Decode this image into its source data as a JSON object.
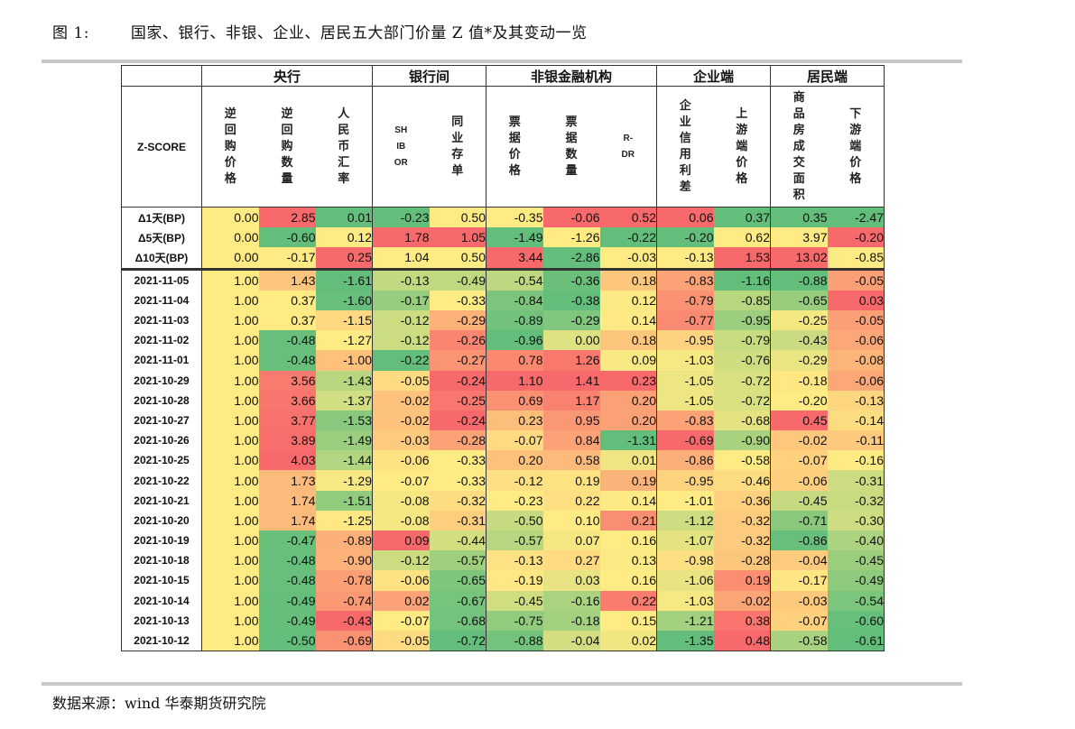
{
  "figure": {
    "label": "图 1:",
    "title": "国家、银行、非银、企业、居民五大部门价量 Z 值*及其变动一览",
    "source": "数据来源：wind 华泰期货研究院"
  },
  "table": {
    "corner_label": "Z-SCORE",
    "groups": [
      {
        "label": "央行",
        "span": 3
      },
      {
        "label": "银行间",
        "span": 2
      },
      {
        "label": "非银金融机构",
        "span": 3
      },
      {
        "label": "企业端",
        "span": 2
      },
      {
        "label": "居民端",
        "span": 2
      }
    ],
    "columns": [
      "逆回购价格",
      "逆回购数量",
      "人民币汇率",
      "SHIBOR",
      "同业存单",
      "票据价格",
      "票据数量",
      "R-DR",
      "企业信用利差",
      "上游端价格",
      "商品房成交面积",
      "下游端价格"
    ],
    "delta_rows": [
      {
        "label": "Δ1天(BP)",
        "values": [
          "0.00",
          "2.85",
          "0.01",
          "-0.23",
          "0.50",
          "-0.35",
          "-0.06",
          "0.52",
          "0.06",
          "0.37",
          "0.35",
          "-2.47"
        ]
      },
      {
        "label": "Δ5天(BP)",
        "values": [
          "0.00",
          "-0.60",
          "0.12",
          "1.78",
          "1.05",
          "-1.49",
          "-1.26",
          "-0.22",
          "-0.20",
          "0.62",
          "3.97",
          "-0.20"
        ]
      },
      {
        "label": "Δ10天(BP)",
        "values": [
          "0.00",
          "-0.17",
          "0.25",
          "1.04",
          "0.50",
          "3.44",
          "-2.86",
          "-0.03",
          "-0.13",
          "1.53",
          "13.02",
          "-0.85"
        ]
      }
    ],
    "rows": [
      {
        "label": "2021-11-05",
        "values": [
          "1.00",
          "1.43",
          "-1.61",
          "-0.13",
          "-0.49",
          "-0.54",
          "-0.36",
          "0.18",
          "-0.83",
          "-1.16",
          "-0.88",
          "-0.05"
        ]
      },
      {
        "label": "2021-11-04",
        "values": [
          "1.00",
          "0.37",
          "-1.60",
          "-0.17",
          "-0.33",
          "-0.84",
          "-0.38",
          "0.12",
          "-0.79",
          "-0.85",
          "-0.65",
          "0.03"
        ]
      },
      {
        "label": "2021-11-03",
        "values": [
          "1.00",
          "0.37",
          "-1.15",
          "-0.12",
          "-0.29",
          "-0.89",
          "-0.29",
          "0.14",
          "-0.77",
          "-0.95",
          "-0.25",
          "-0.05"
        ]
      },
      {
        "label": "2021-11-02",
        "values": [
          "1.00",
          "-0.48",
          "-1.27",
          "-0.12",
          "-0.26",
          "-0.96",
          "0.00",
          "0.18",
          "-0.95",
          "-0.79",
          "-0.43",
          "-0.06"
        ]
      },
      {
        "label": "2021-11-01",
        "values": [
          "1.00",
          "-0.48",
          "-1.00",
          "-0.22",
          "-0.27",
          "0.78",
          "1.26",
          "0.09",
          "-1.03",
          "-0.76",
          "-0.29",
          "-0.08"
        ]
      },
      {
        "label": "2021-10-29",
        "values": [
          "1.00",
          "3.56",
          "-1.43",
          "-0.05",
          "-0.24",
          "1.10",
          "1.41",
          "0.23",
          "-1.05",
          "-0.72",
          "-0.18",
          "-0.06"
        ]
      },
      {
        "label": "2021-10-28",
        "values": [
          "1.00",
          "3.66",
          "-1.37",
          "-0.02",
          "-0.25",
          "0.69",
          "1.17",
          "0.20",
          "-1.05",
          "-0.72",
          "-0.20",
          "-0.13"
        ]
      },
      {
        "label": "2021-10-27",
        "values": [
          "1.00",
          "3.77",
          "-1.53",
          "-0.02",
          "-0.24",
          "0.23",
          "0.95",
          "0.20",
          "-0.83",
          "-0.68",
          "0.45",
          "-0.14"
        ]
      },
      {
        "label": "2021-10-26",
        "values": [
          "1.00",
          "3.89",
          "-1.49",
          "-0.03",
          "-0.28",
          "-0.07",
          "0.84",
          "-1.31",
          "-0.69",
          "-0.90",
          "-0.02",
          "-0.11"
        ]
      },
      {
        "label": "2021-10-25",
        "values": [
          "1.00",
          "4.03",
          "-1.44",
          "-0.06",
          "-0.33",
          "0.20",
          "0.58",
          "0.01",
          "-0.86",
          "-0.58",
          "-0.07",
          "-0.16"
        ]
      },
      {
        "label": "2021-10-22",
        "values": [
          "1.00",
          "1.73",
          "-1.29",
          "-0.07",
          "-0.33",
          "-0.12",
          "0.19",
          "0.19",
          "-0.95",
          "-0.46",
          "-0.06",
          "-0.31"
        ]
      },
      {
        "label": "2021-10-21",
        "values": [
          "1.00",
          "1.74",
          "-1.51",
          "-0.08",
          "-0.32",
          "-0.23",
          "0.22",
          "0.14",
          "-1.01",
          "-0.36",
          "-0.45",
          "-0.32"
        ]
      },
      {
        "label": "2021-10-20",
        "values": [
          "1.00",
          "1.74",
          "-1.25",
          "-0.08",
          "-0.31",
          "-0.50",
          "0.10",
          "0.21",
          "-1.12",
          "-0.32",
          "-0.71",
          "-0.30"
        ]
      },
      {
        "label": "2021-10-19",
        "values": [
          "1.00",
          "-0.47",
          "-0.89",
          "0.09",
          "-0.44",
          "-0.57",
          "0.07",
          "0.16",
          "-1.07",
          "-0.32",
          "-0.86",
          "-0.40"
        ]
      },
      {
        "label": "2021-10-18",
        "values": [
          "1.00",
          "-0.48",
          "-0.90",
          "-0.12",
          "-0.57",
          "-0.13",
          "0.27",
          "0.13",
          "-0.98",
          "-0.28",
          "-0.04",
          "-0.45"
        ]
      },
      {
        "label": "2021-10-15",
        "values": [
          "1.00",
          "-0.48",
          "-0.78",
          "-0.06",
          "-0.65",
          "-0.19",
          "0.03",
          "0.16",
          "-1.06",
          "0.19",
          "-0.17",
          "-0.49"
        ]
      },
      {
        "label": "2021-10-14",
        "values": [
          "1.00",
          "-0.49",
          "-0.74",
          "0.02",
          "-0.67",
          "-0.45",
          "-0.16",
          "0.22",
          "-1.03",
          "-0.02",
          "-0.03",
          "-0.54"
        ]
      },
      {
        "label": "2021-10-13",
        "values": [
          "1.00",
          "-0.49",
          "-0.43",
          "-0.07",
          "-0.68",
          "-0.75",
          "-0.18",
          "0.15",
          "-1.21",
          "0.38",
          "-0.07",
          "-0.60"
        ]
      },
      {
        "label": "2021-10-12",
        "values": [
          "1.00",
          "-0.50",
          "-0.69",
          "-0.05",
          "-0.72",
          "-0.88",
          "-0.04",
          "0.02",
          "-1.35",
          "0.48",
          "-0.58",
          "-0.61"
        ]
      }
    ],
    "colors": {
      "high": "#f8696b",
      "mid_high": "#fbaa77",
      "mid": "#ffeb84",
      "low": "#63be7b",
      "rule": "#c8c8c8"
    }
  }
}
